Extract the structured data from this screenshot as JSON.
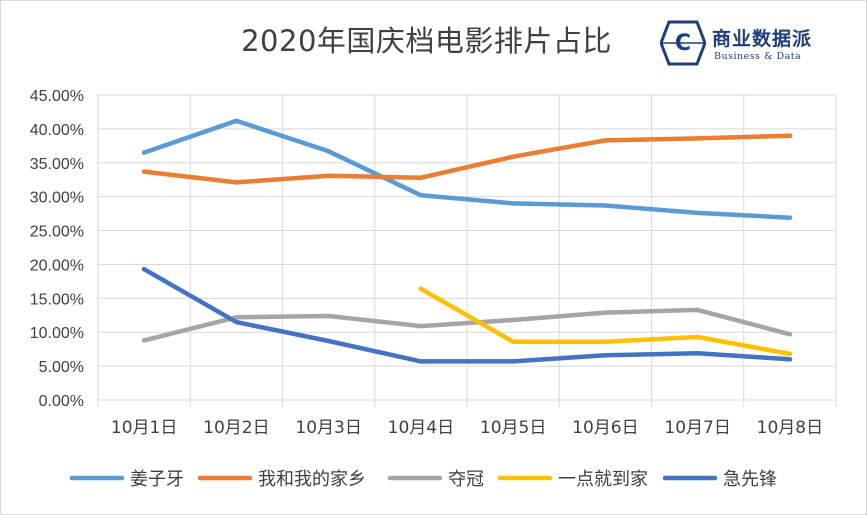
{
  "logo": {
    "name": "商业数据派",
    "tagline": "Business & Data",
    "letter": "C",
    "color": "#1f3f7a"
  },
  "chart_data": {
    "type": "line",
    "title": "2020年国庆档电影排片占比",
    "categories": [
      "10月1日",
      "10月2日",
      "10月3日",
      "10月4日",
      "10月5日",
      "10月6日",
      "10月7日",
      "10月8日"
    ],
    "y_ticks": [
      "0.00%",
      "5.00%",
      "10.00%",
      "15.00%",
      "20.00%",
      "25.00%",
      "30.00%",
      "35.00%",
      "40.00%",
      "45.00%"
    ],
    "ylim": [
      0,
      45
    ],
    "grid": true,
    "legend_position": "bottom",
    "series": [
      {
        "name": "姜子牙",
        "color": "#5b9bd5",
        "values": [
          36.5,
          41.2,
          36.7,
          30.2,
          29.0,
          28.7,
          27.6,
          26.9
        ]
      },
      {
        "name": "我和我的家乡",
        "color": "#ed7d31",
        "values": [
          33.7,
          32.1,
          33.1,
          32.8,
          35.9,
          38.3,
          38.6,
          39.0
        ]
      },
      {
        "name": "夺冠",
        "color": "#a5a5a5",
        "values": [
          8.8,
          12.2,
          12.4,
          10.9,
          11.8,
          12.9,
          13.3,
          9.7
        ]
      },
      {
        "name": "一点就到家",
        "color": "#ffc000",
        "values": [
          null,
          null,
          null,
          16.4,
          8.6,
          8.6,
          9.3,
          6.8
        ]
      },
      {
        "name": "急先锋",
        "color": "#4472c4",
        "values": [
          19.3,
          11.5,
          8.7,
          5.7,
          5.7,
          6.6,
          6.9,
          6.0
        ]
      }
    ]
  }
}
